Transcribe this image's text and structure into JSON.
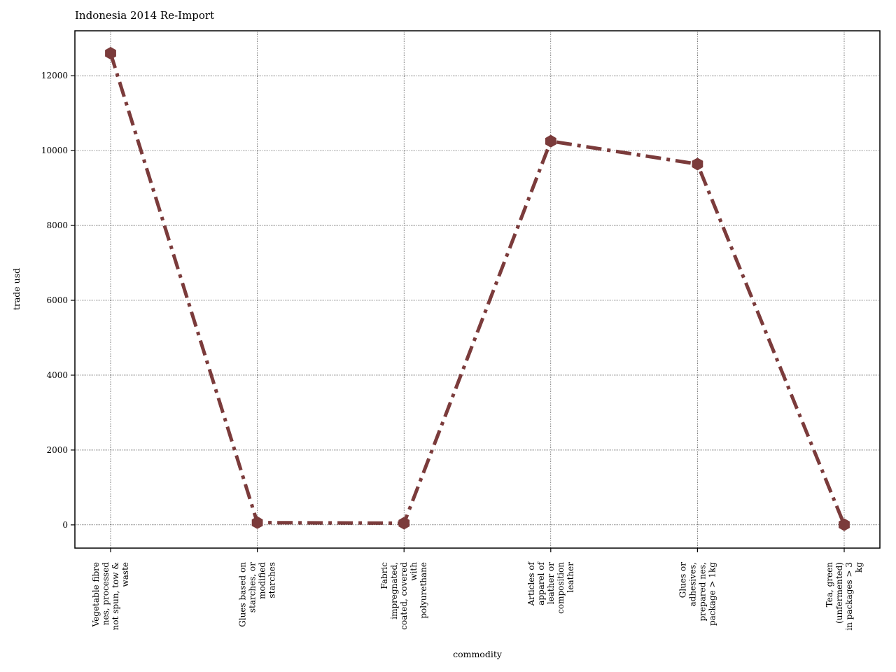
{
  "chart_data": {
    "type": "line",
    "title": "Indonesia 2014 Re-Import",
    "xlabel": "commodity",
    "ylabel": "trade usd",
    "categories": [
      [
        "Vegetable fibre",
        "nes, processed",
        "not spun, tow &",
        "waste"
      ],
      [
        "Glues based on",
        "starches, or",
        "modified",
        "starches"
      ],
      [
        "Fabric",
        "impregnated,",
        "coated, covered",
        "with",
        "polyurethane"
      ],
      [
        "Articles of",
        "apparel of",
        "leather or",
        "composition",
        "leather"
      ],
      [
        "Glues or",
        "adhesives,",
        "prepared nes,",
        "package > 1kg"
      ],
      [
        "Tea, green",
        "(unfermented)",
        "in packages > 3",
        "kg"
      ]
    ],
    "values": [
      12600,
      60,
      45,
      10250,
      9640,
      5
    ],
    "ylim": [
      -620,
      13200
    ],
    "yticks": [
      0,
      2000,
      4000,
      6000,
      8000,
      10000,
      12000
    ],
    "grid": true,
    "color": "#7b3b3b",
    "line_style": "dash-dot",
    "marker": "hexagon"
  }
}
